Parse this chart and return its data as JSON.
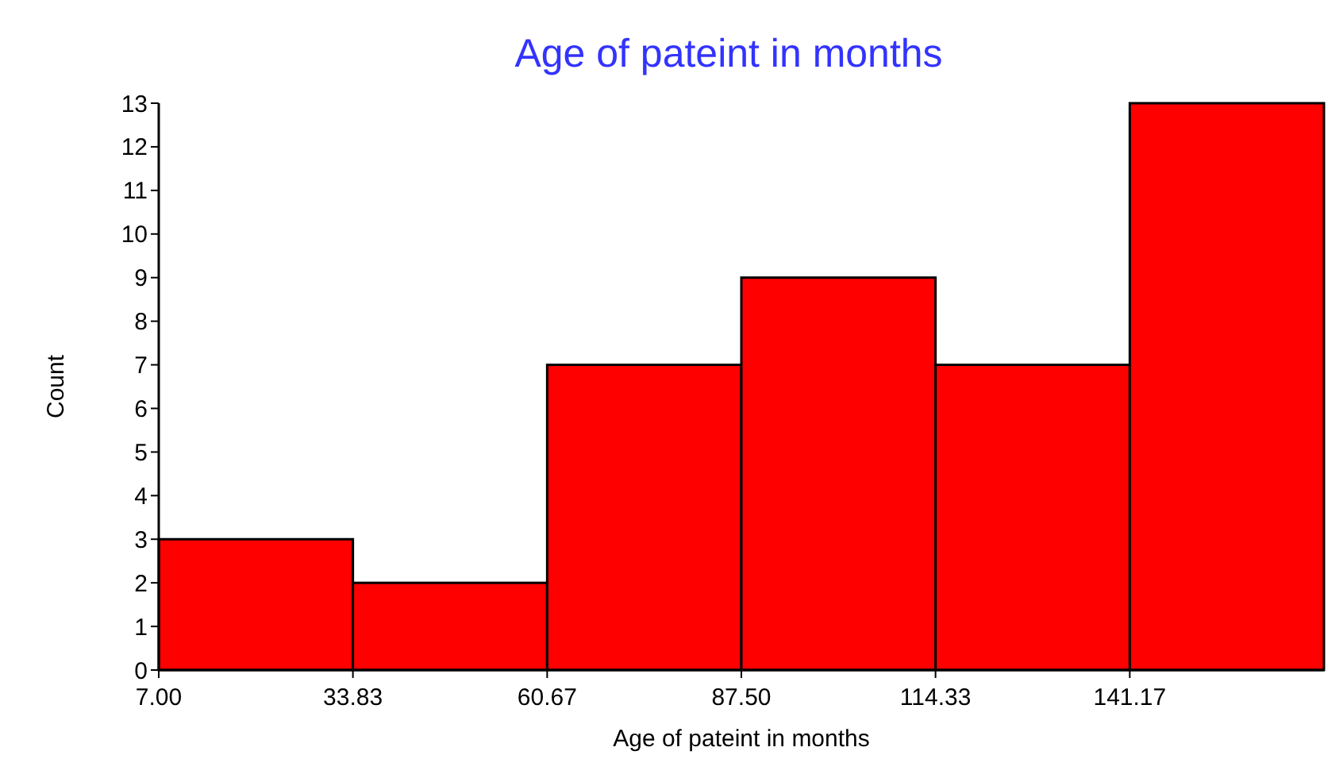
{
  "chart_data": {
    "type": "histogram",
    "title": "Age of pateint in  months",
    "xlabel": "Age of pateint in  months",
    "ylabel": "Count",
    "bins": [
      7.0,
      33.83,
      60.67,
      87.5,
      114.33,
      141.17,
      168.0
    ],
    "values": [
      3,
      2,
      7,
      9,
      7,
      13
    ],
    "color": "#ff0000",
    "xlim": [
      7,
      168
    ],
    "xticks": [
      {
        "value": 7,
        "label": "7.00"
      },
      {
        "value": 33.83,
        "label": "33.83"
      },
      {
        "value": 60.67,
        "label": "60.67"
      },
      {
        "value": 87.5,
        "label": "87.50"
      },
      {
        "value": 114.33,
        "label": "114.33"
      },
      {
        "value": 141.17,
        "label": "141.17"
      }
    ],
    "ylim": [
      0,
      13
    ],
    "yticks": [
      0,
      1,
      2,
      3,
      4,
      5,
      6,
      7,
      8,
      9,
      10,
      11,
      12,
      13
    ]
  }
}
